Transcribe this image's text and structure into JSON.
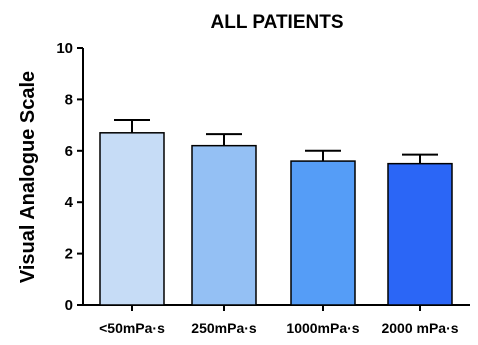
{
  "chart_data": {
    "type": "bar",
    "title": "ALL PATIENTS",
    "xlabel": "",
    "ylabel": "Visual Analogue Scale",
    "ylim": [
      0,
      10
    ],
    "yticks": [
      "0",
      "2",
      "4",
      "6",
      "8",
      "10"
    ],
    "categories": [
      "<50mPa·s",
      "250mPa·s",
      "1000mPa·s",
      "2000 mPa·s"
    ],
    "values": [
      6.7,
      6.2,
      5.6,
      5.5
    ],
    "error": [
      0.5,
      0.45,
      0.4,
      0.35
    ],
    "colors": [
      "#c6dcf6",
      "#94c0f4",
      "#559df7",
      "#2b66f6"
    ],
    "grid": false,
    "legend": "none"
  }
}
